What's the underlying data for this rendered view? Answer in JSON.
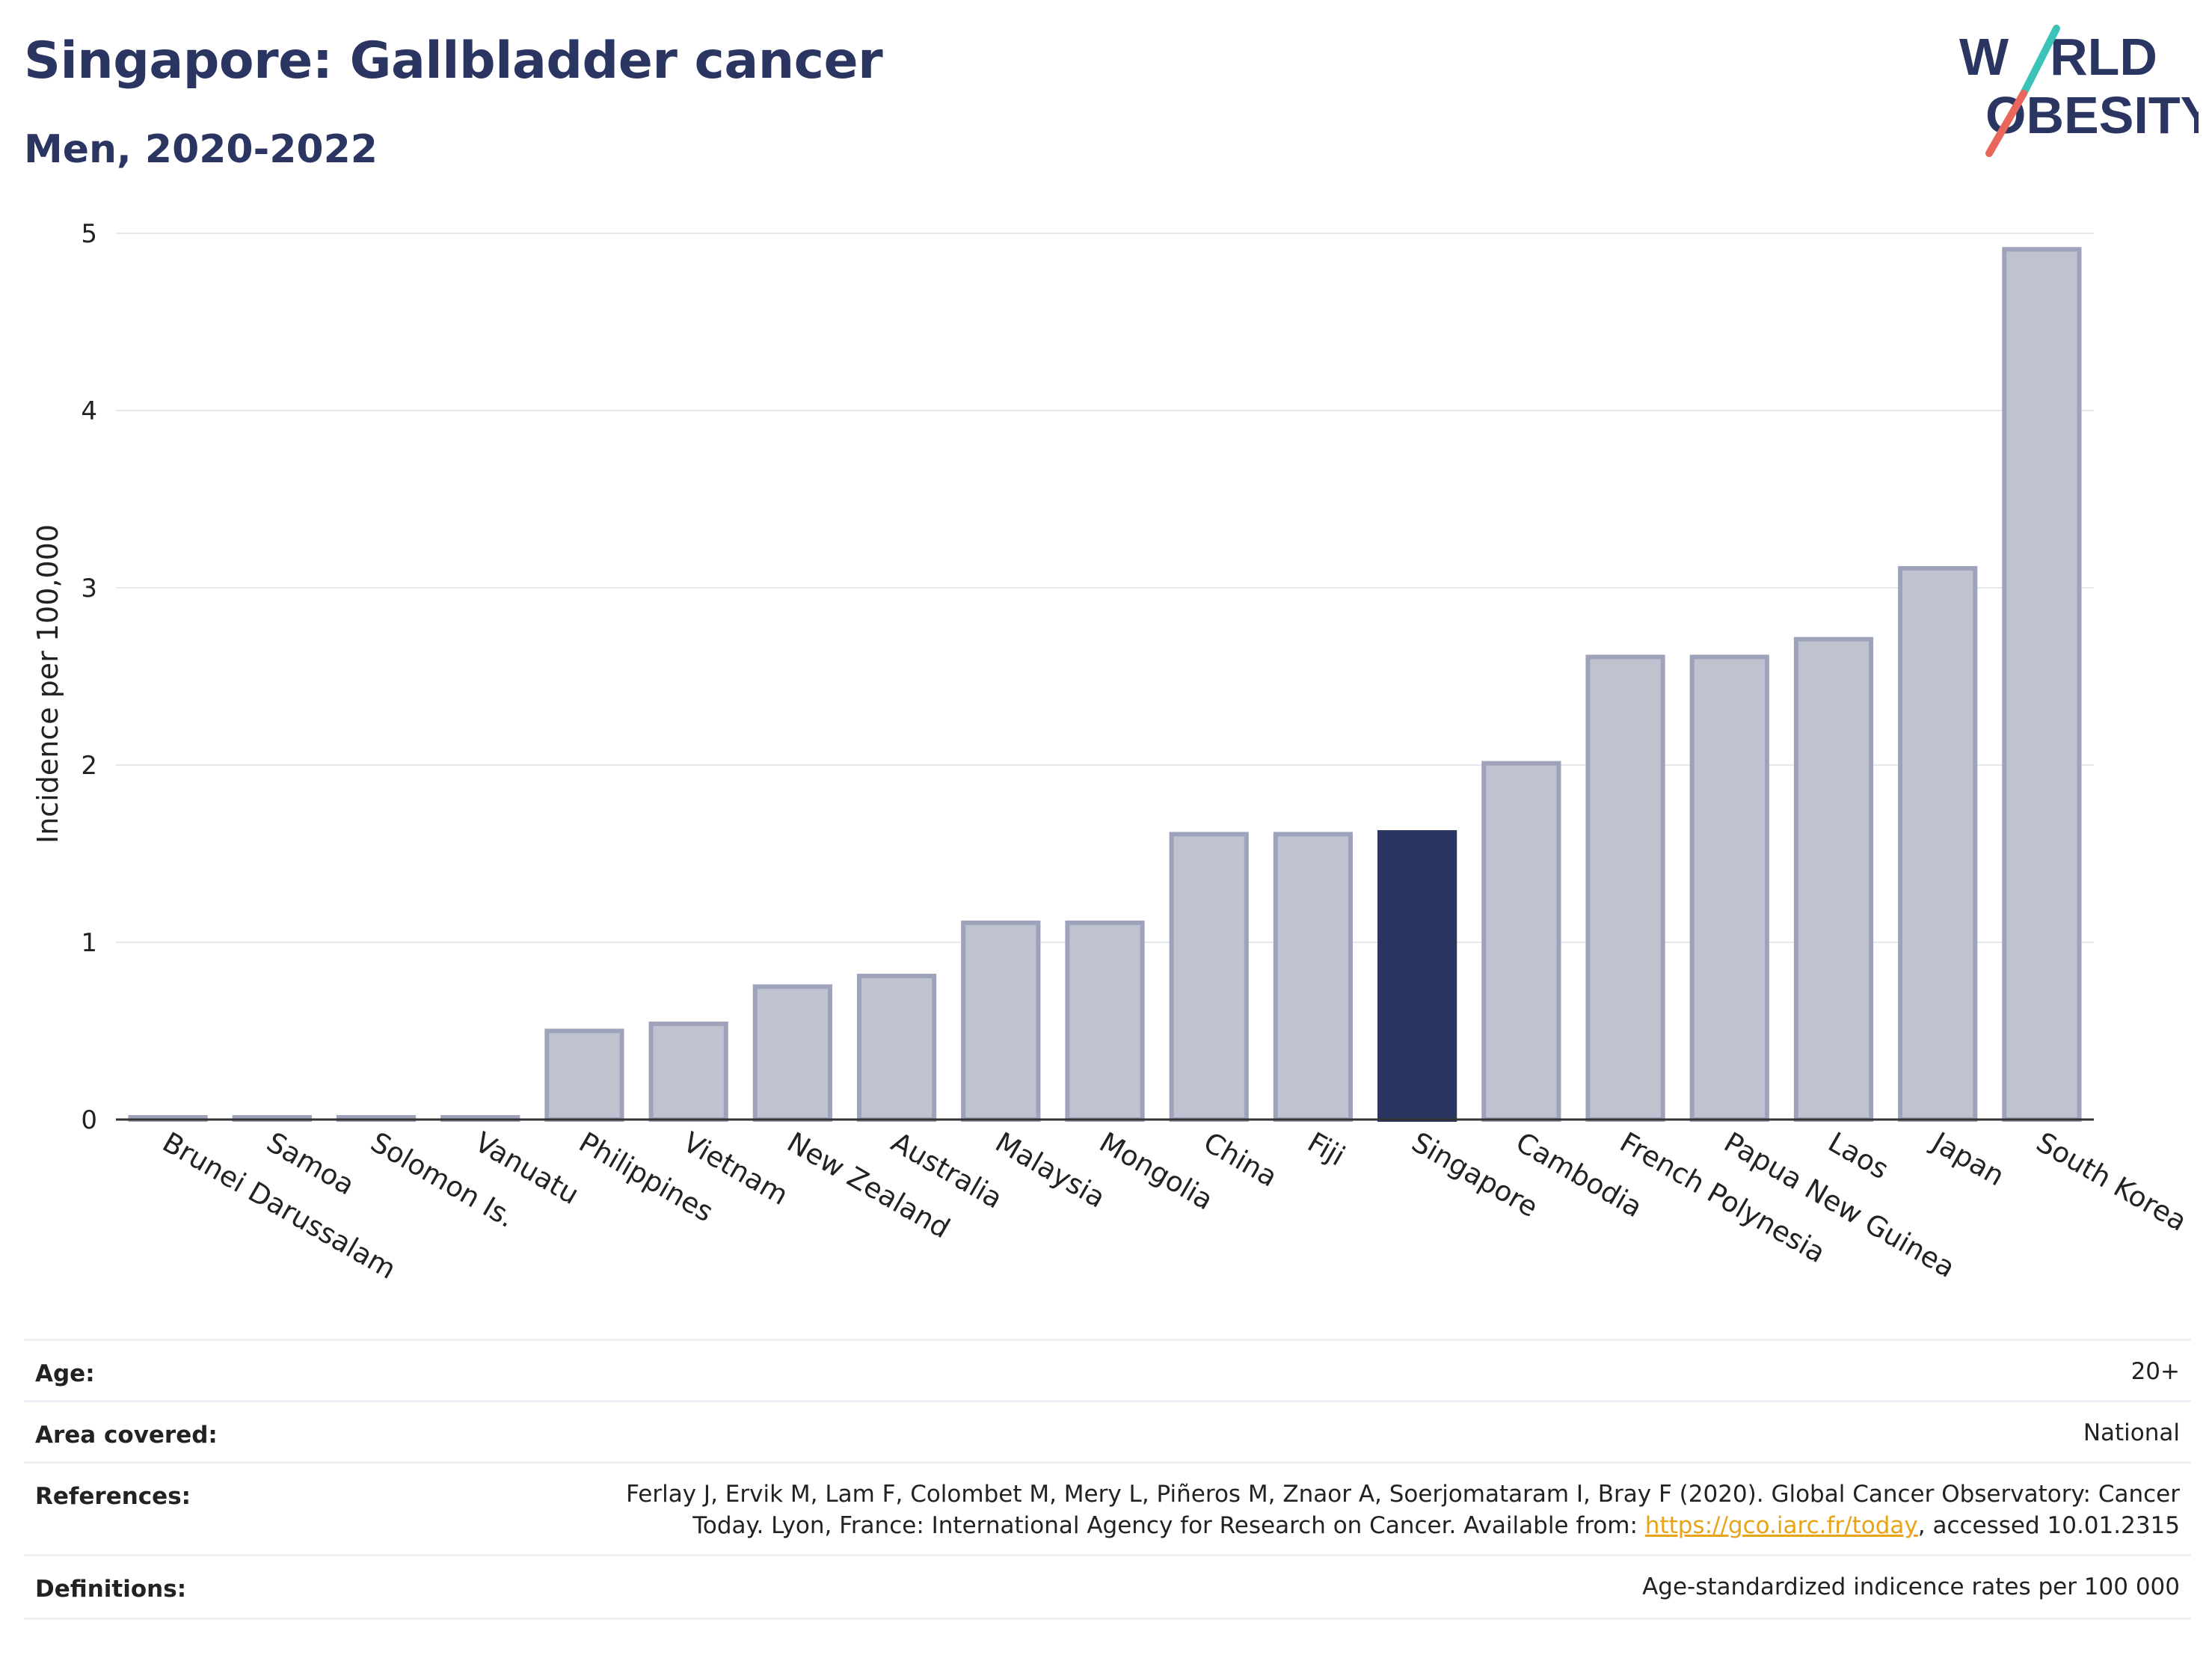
{
  "header": {
    "title": "Singapore: Gallbladder cancer",
    "subtitle": "Men, 2020-2022"
  },
  "logo": {
    "line1_pre": "W",
    "line1_post": "RLD",
    "line2": "OBESITY",
    "colors": {
      "text": "#2b3561",
      "slash_top": "#3cc3b8",
      "slash_bottom": "#e8665b"
    }
  },
  "chart_data": {
    "type": "bar",
    "categories": [
      "Brunei Darussalam",
      "Samoa",
      "Solomon Is.",
      "Vanuatu",
      "Philippines",
      "Vietnam",
      "New Zealand",
      "Australia",
      "Malaysia",
      "Mongolia",
      "China",
      "Fiji",
      "Singapore",
      "Cambodia",
      "French Polynesia",
      "Papua New Guinea",
      "Laos",
      "Japan",
      "South Korea"
    ],
    "values": [
      0,
      0,
      0,
      0,
      0.5,
      0.54,
      0.75,
      0.81,
      1.11,
      1.11,
      1.61,
      1.61,
      1.62,
      2.01,
      2.61,
      2.61,
      2.71,
      3.11,
      4.91
    ],
    "highlight": "Singapore",
    "ylabel": "Incidence per 100,000",
    "xlabel": "",
    "ylim": [
      0,
      5
    ],
    "yticks": [
      0,
      1,
      2,
      3,
      4,
      5
    ],
    "grid": true,
    "colors": {
      "bar": "#bfc3d0",
      "bar_edge": "#9ea3bb",
      "highlight": "#2b3561",
      "grid": "#e6e8ee",
      "axis": "#333333"
    }
  },
  "meta": {
    "age_label": "Age:",
    "age_value": "20+",
    "area_label": "Area covered:",
    "area_value": "National",
    "ref_label": "References:",
    "ref_line1": "Ferlay J, Ervik M, Lam F, Colombet M, Mery L, Piñeros M, Znaor A, Soerjomataram I, Bray F (2020). Global Cancer Observatory: Cancer",
    "ref_line2_pre": "Today. Lyon, France: International Agency for Research on Cancer. Available from: ",
    "ref_link": "https://gco.iarc.fr/today",
    "ref_line2_post": ", accessed 10.01.2315",
    "def_label": "Definitions:",
    "def_value": "Age-standardized indicence rates per 100 000"
  }
}
